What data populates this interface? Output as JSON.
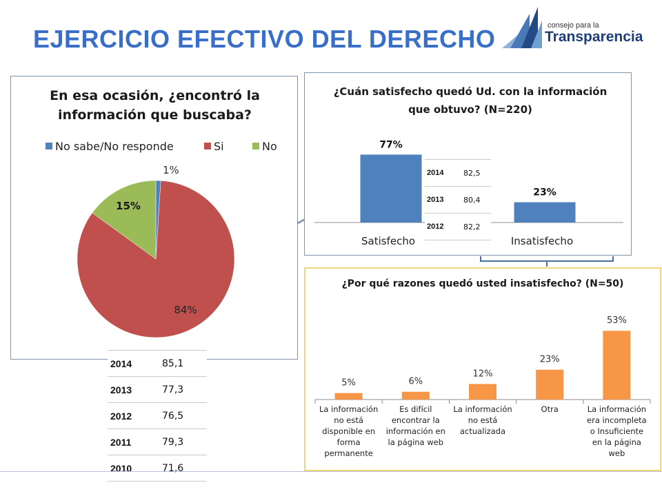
{
  "title": "EJERCICIO EFECTIVO DEL DERECHO",
  "logo": {
    "line1": "consejo para la",
    "line2": "Transparencia"
  },
  "colors": {
    "title": "#3a6fc9",
    "blue": "#4f81bd",
    "red": "#c0504d",
    "green": "#9bbb59",
    "orange": "#f79646"
  },
  "chart_data": [
    {
      "type": "pie",
      "title": "En esa ocasión, ¿encontró la información que buscaba?",
      "legend_position": "top",
      "slices": [
        {
          "name": "No sabe/No responde",
          "value": 1,
          "label": "1%",
          "color": "#4f81bd"
        },
        {
          "name": "Si",
          "value": 84,
          "label": "84%",
          "color": "#c0504d"
        },
        {
          "name": "No",
          "value": 15,
          "label": "15%",
          "color": "#9bbb59"
        }
      ]
    },
    {
      "type": "bar",
      "title": "¿Cuán satisfecho quedó  Ud. con la información que obtuvo? (N=220)",
      "categories": [
        "Satisfecho",
        "Insatisfecho"
      ],
      "values": [
        77,
        23
      ],
      "labels": [
        "77%",
        "23%"
      ],
      "ylim": [
        0,
        100
      ],
      "grid": false,
      "color": "#4f81bd"
    },
    {
      "type": "bar",
      "title": "¿Por qué razones quedó usted insatisfecho? (N=50)",
      "categories": [
        [
          "La información",
          "no está",
          "disponible en",
          "forma",
          "permanente"
        ],
        [
          "Es difícil",
          "encontrar la",
          "información en",
          "la página web"
        ],
        [
          "La información",
          "no está",
          "actualizada"
        ],
        [
          "Otra"
        ],
        [
          "La información",
          "era incompleta",
          "o Insuficiente",
          "en la página",
          "web"
        ]
      ],
      "values": [
        5,
        6,
        12,
        23,
        53
      ],
      "labels": [
        "5%",
        "6%",
        "12%",
        "23%",
        "53%"
      ],
      "ylim": [
        0,
        60
      ],
      "grid": false,
      "color": "#f79646"
    }
  ],
  "tables": {
    "satisfaction": [
      {
        "year": "2014",
        "value": "82,5"
      },
      {
        "year": "2013",
        "value": "80,4"
      },
      {
        "year": "2012",
        "value": "82,2"
      }
    ],
    "found_info": [
      {
        "year": "2014",
        "value": "85,1"
      },
      {
        "year": "2013",
        "value": "77,3"
      },
      {
        "year": "2012",
        "value": "76,5"
      },
      {
        "year": "2011",
        "value": "79,3"
      },
      {
        "year": "2010",
        "value": "71,6"
      }
    ]
  }
}
